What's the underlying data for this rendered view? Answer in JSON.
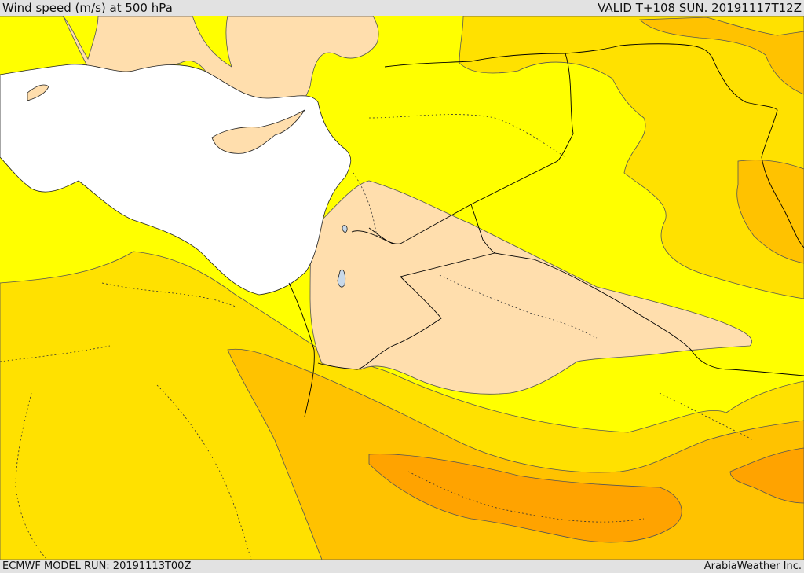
{
  "header": {
    "title": "Wind speed (m/s) at 500 hPa",
    "valid": "VALID T+108 SUN. 20191117T12Z"
  },
  "footer": {
    "model_run": "ECMWF MODEL RUN: 20191113T00Z",
    "credit": "ArabiaWeather Inc."
  },
  "map": {
    "region": "Eastern Mediterranean and Middle East",
    "variable": "wind speed at 500 hPa",
    "units": "m/s",
    "fill_colors": [
      "#ffdead",
      "#ffff00",
      "#ffe100",
      "#ffc200",
      "#ffa300"
    ],
    "sea_color": "#ffffff",
    "lake_color": "#c8d8e8",
    "boundary_color": "#000000"
  }
}
